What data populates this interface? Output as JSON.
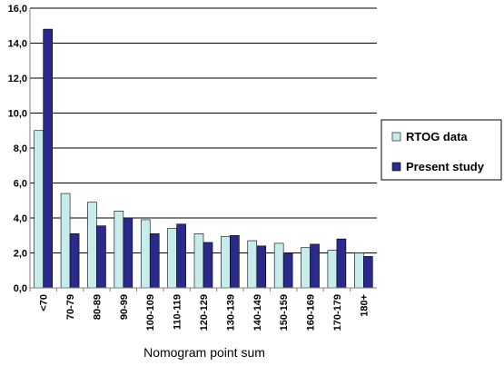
{
  "chart_data": {
    "type": "bar",
    "xlabel": "Nomogram point sum",
    "ylabel": "",
    "ylim": [
      0,
      16
    ],
    "ytick_step": 2,
    "ytick_labels": [
      "0,0",
      "2,0",
      "4,0",
      "6,0",
      "8,0",
      "10,0",
      "12,0",
      "14,0",
      "16,0"
    ],
    "grid": true,
    "legend_position": "right",
    "categories": [
      "<70",
      "70-79",
      "80-89",
      "90-99",
      "100-109",
      "110-119",
      "120-129",
      "130-139",
      "140-149",
      "150-159",
      "160-169",
      "170-179",
      "180+"
    ],
    "series": [
      {
        "name": "RTOG data",
        "color": "#c6ecec",
        "values": [
          9.0,
          5.4,
          4.9,
          4.4,
          3.9,
          3.4,
          3.1,
          2.95,
          2.7,
          2.55,
          2.3,
          2.15,
          2.0
        ]
      },
      {
        "name": "Present study",
        "color": "#2a2a8c",
        "values": [
          14.8,
          3.1,
          3.55,
          4.0,
          3.1,
          3.65,
          2.6,
          3.0,
          2.4,
          2.0,
          2.5,
          2.8,
          1.8
        ]
      }
    ]
  }
}
